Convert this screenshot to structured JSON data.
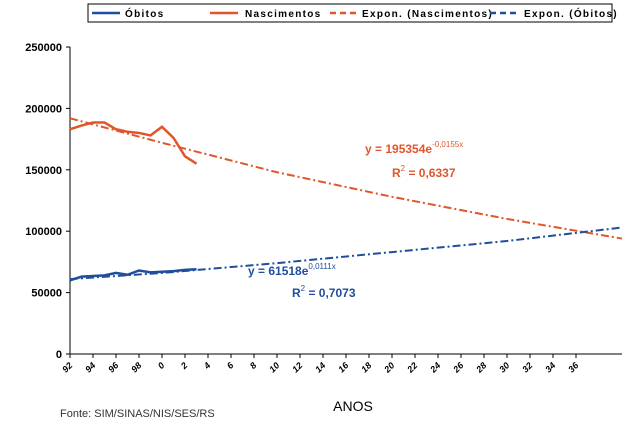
{
  "chart_data": {
    "type": "line",
    "x_label": "ANOS",
    "source": "Fonte: SIM/SINAS/NIS/SES/RS",
    "xlim": [
      1992,
      2040
    ],
    "ylim": [
      0,
      250000
    ],
    "xticks": [
      {
        "value": 1992,
        "label": "92"
      },
      {
        "value": 1994,
        "label": "94"
      },
      {
        "value": 1996,
        "label": "96"
      },
      {
        "value": 1998,
        "label": "98"
      },
      {
        "value": 2000,
        "label": "0"
      },
      {
        "value": 2002,
        "label": "2"
      },
      {
        "value": 2004,
        "label": "4"
      },
      {
        "value": 2006,
        "label": "6"
      },
      {
        "value": 2008,
        "label": "8"
      },
      {
        "value": 2010,
        "label": "10"
      },
      {
        "value": 2012,
        "label": "12"
      },
      {
        "value": 2014,
        "label": "14"
      },
      {
        "value": 2016,
        "label": "16"
      },
      {
        "value": 2018,
        "label": "18"
      },
      {
        "value": 2020,
        "label": "20"
      },
      {
        "value": 2022,
        "label": "22"
      },
      {
        "value": 2024,
        "label": "24"
      },
      {
        "value": 2026,
        "label": "26"
      },
      {
        "value": 2028,
        "label": "28"
      },
      {
        "value": 2030,
        "label": "30"
      },
      {
        "value": 2032,
        "label": "32"
      },
      {
        "value": 2034,
        "label": "34"
      },
      {
        "value": 2036,
        "label": "36"
      }
    ],
    "yticks": [
      0,
      50000,
      100000,
      150000,
      200000,
      250000
    ],
    "series": [
      {
        "name": "Óbitos",
        "color": "#1f4e9c",
        "line_style": "solid",
        "x": [
          1992,
          1993,
          1994,
          1995,
          1996,
          1997,
          1998,
          1999,
          2000,
          2001,
          2002,
          2003
        ],
        "values": [
          60000,
          63000,
          63500,
          64000,
          66000,
          64500,
          68000,
          66500,
          67000,
          67500,
          68500,
          69000
        ]
      },
      {
        "name": "Nascimentos",
        "color": "#e0562a",
        "line_style": "solid",
        "x": [
          1992,
          1993,
          1994,
          1995,
          1996,
          1997,
          1998,
          1999,
          2000,
          2001,
          2002,
          2003
        ],
        "values": [
          183000,
          186000,
          188500,
          188500,
          183000,
          181000,
          180000,
          178000,
          185000,
          176000,
          161000,
          155000
        ]
      },
      {
        "name": "Expon. (Nascimentos)",
        "color": "#e0562a",
        "line_style": "dashed",
        "x": [
          1992,
          2000,
          2010,
          2020,
          2030,
          2040
        ],
        "values": [
          192000,
          172000,
          148000,
          128000,
          110000,
          94000
        ]
      },
      {
        "name": "Expon. (Óbitos)",
        "color": "#1f4e9c",
        "line_style": "dashed",
        "x": [
          1992,
          2000,
          2010,
          2020,
          2030,
          2040
        ],
        "values": [
          61000,
          66000,
          74000,
          83000,
          92000,
          103000
        ]
      }
    ],
    "annotations": [
      {
        "text": "y = 195354e",
        "sup": "-0,0155x",
        "color": "#e0562a"
      },
      {
        "text": "R",
        "sup": "2",
        "tail": " = 0,6337",
        "color": "#e0562a"
      },
      {
        "text": "y = 61518e",
        "sup": "0,0111x",
        "color": "#1f4e9c"
      },
      {
        "text": "R",
        "sup": "2",
        "tail": " = 0,7073",
        "color": "#1f4e9c"
      }
    ]
  }
}
